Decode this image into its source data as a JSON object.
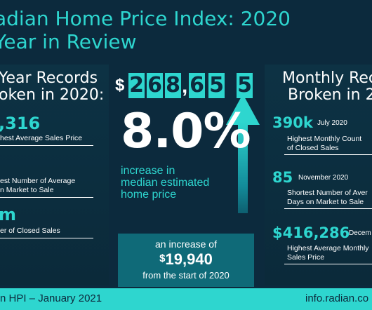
{
  "header": {
    "line1": "adian Home Price Index: 2020",
    "line2": "Year in Review"
  },
  "left": {
    "heading_line1": "Year Records",
    "heading_line2": "oken in 2020:",
    "stats": [
      {
        "value": ",316",
        "label_lines": [
          "hest Average Sales Price"
        ]
      },
      {
        "value": "",
        "label_lines": [
          "est Number of Average",
          "n Market to Sale"
        ]
      },
      {
        "value": "m",
        "label_lines": [
          "er of Closed Sales"
        ]
      }
    ]
  },
  "center": {
    "dollar_sign": "$",
    "price_digits": [
      "2",
      "6",
      "8",
      ",",
      "6",
      "5",
      "5"
    ],
    "percent_value": "8.0%",
    "increase_lines": [
      "increase in",
      "median estimated",
      "home price"
    ],
    "box": {
      "line1": "an increase of",
      "dollar": "$",
      "amount": "19,940",
      "line3": "from the start of 2020"
    }
  },
  "right": {
    "heading_line1": "Monthly Reco",
    "heading_line2": "Broken in 20",
    "stats": [
      {
        "value": "390k",
        "date": "July 2020",
        "label_lines": [
          "Highest Monthly Count",
          "of Closed Sales"
        ]
      },
      {
        "value": "85",
        "date": "November 2020",
        "label_lines": [
          "Shortest Number of Aver",
          "Days on Market to Sale"
        ]
      },
      {
        "value": "$416,286",
        "date": "Decem",
        "label_lines": [
          "Highest Average Monthly",
          "Sales Price"
        ]
      }
    ]
  },
  "footer": {
    "left": "n HPI – January 2021",
    "right": "info.radian.co"
  },
  "colors": {
    "background": "#0c2a3d",
    "accent": "#2ed6cf",
    "box": "#0f6a78"
  }
}
